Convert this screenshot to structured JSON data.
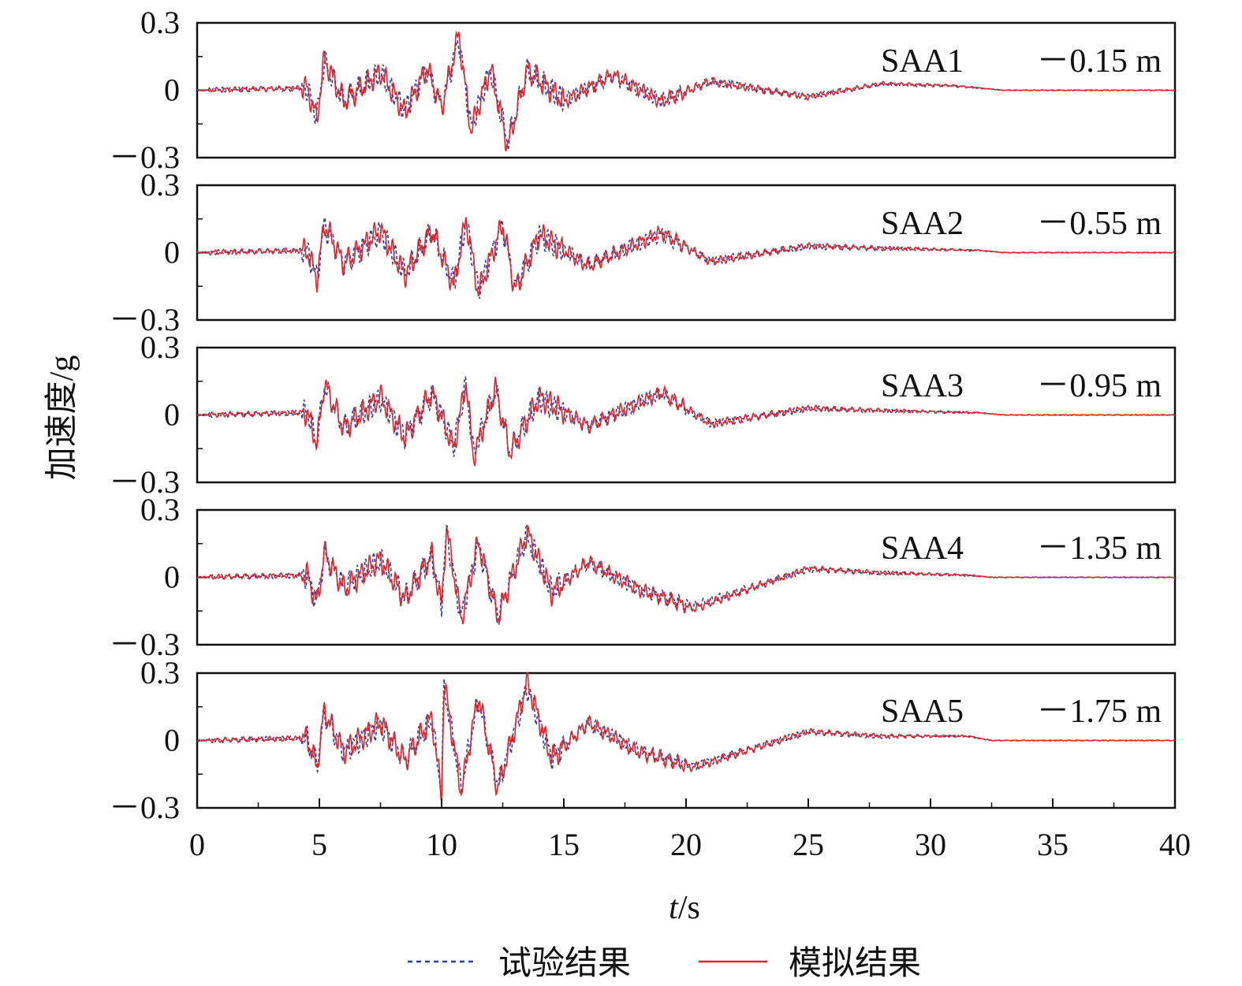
{
  "chart_data": {
    "type": "line",
    "ylabel": "加速度/g",
    "xlabel_var": "t",
    "xlabel_unit": "/s",
    "xlim": [
      0,
      40
    ],
    "ylim": [
      -0.3,
      0.3
    ],
    "x_ticks": [
      "0",
      "5",
      "10",
      "15",
      "20",
      "25",
      "30",
      "35",
      "40"
    ],
    "y_tick_labels": [
      "0.3",
      "0",
      "－0.3"
    ],
    "series_legend": [
      {
        "name": "试验结果",
        "color": "#2e3f9e",
        "style": "dashed"
      },
      {
        "name": "模拟结果",
        "color": "#e0242b",
        "style": "solid"
      }
    ],
    "panels": [
      {
        "label": "SAA1",
        "depth": "－0.15 m",
        "keypoints": [
          [
            0,
            0
          ],
          [
            4.5,
            0.01
          ],
          [
            4.9,
            -0.13
          ],
          [
            5.2,
            0.14
          ],
          [
            6,
            -0.05
          ],
          [
            7.5,
            0.08
          ],
          [
            8.5,
            -0.1
          ],
          [
            9.4,
            0.1
          ],
          [
            10,
            -0.08
          ],
          [
            10.7,
            0.25
          ],
          [
            11.2,
            -0.18
          ],
          [
            12,
            0.1
          ],
          [
            12.7,
            -0.25
          ],
          [
            13.5,
            0.09
          ],
          [
            15,
            -0.05
          ],
          [
            17,
            0.07
          ],
          [
            19,
            -0.05
          ],
          [
            21,
            0.04
          ],
          [
            25,
            -0.03
          ],
          [
            28,
            0.03
          ],
          [
            31,
            0.02
          ],
          [
            33,
            0
          ],
          [
            40,
            0
          ]
        ]
      },
      {
        "label": "SAA2",
        "depth": "－0.55 m",
        "keypoints": [
          [
            0,
            0
          ],
          [
            4.5,
            0.01
          ],
          [
            4.9,
            -0.12
          ],
          [
            5.2,
            0.13
          ],
          [
            6,
            -0.05
          ],
          [
            7.5,
            0.1
          ],
          [
            8.5,
            -0.1
          ],
          [
            9.6,
            0.1
          ],
          [
            10.5,
            -0.15
          ],
          [
            11,
            0.15
          ],
          [
            11.5,
            -0.18
          ],
          [
            12.5,
            0.13
          ],
          [
            13,
            -0.17
          ],
          [
            14,
            0.08
          ],
          [
            16,
            -0.06
          ],
          [
            19,
            0.09
          ],
          [
            21,
            -0.04
          ],
          [
            25,
            0.03
          ],
          [
            28,
            0.02
          ],
          [
            32,
            0.01
          ],
          [
            33,
            0
          ],
          [
            40,
            0
          ]
        ]
      },
      {
        "label": "SAA3",
        "depth": "－0.95 m",
        "keypoints": [
          [
            0,
            0
          ],
          [
            4.5,
            0.01
          ],
          [
            4.9,
            -0.13
          ],
          [
            5.2,
            0.14
          ],
          [
            6,
            -0.06
          ],
          [
            7.5,
            0.08
          ],
          [
            8.5,
            -0.1
          ],
          [
            9.6,
            0.1
          ],
          [
            10.5,
            -0.15
          ],
          [
            11,
            0.15
          ],
          [
            11.3,
            -0.19
          ],
          [
            12.2,
            0.12
          ],
          [
            12.8,
            -0.17
          ],
          [
            14,
            0.08
          ],
          [
            16,
            -0.05
          ],
          [
            19,
            0.1
          ],
          [
            21,
            -0.04
          ],
          [
            25,
            0.03
          ],
          [
            28,
            0.02
          ],
          [
            32,
            0.01
          ],
          [
            33,
            0
          ],
          [
            40,
            0
          ]
        ]
      },
      {
        "label": "SAA4",
        "depth": "－1.35 m",
        "keypoints": [
          [
            0,
            0
          ],
          [
            4.5,
            0.01
          ],
          [
            4.9,
            -0.12
          ],
          [
            5.2,
            0.11
          ],
          [
            6,
            -0.05
          ],
          [
            7.5,
            0.08
          ],
          [
            8.5,
            -0.1
          ],
          [
            9.6,
            0.1
          ],
          [
            10,
            -0.13
          ],
          [
            10.2,
            0.22
          ],
          [
            10.8,
            -0.19
          ],
          [
            11.5,
            0.16
          ],
          [
            12.3,
            -0.18
          ],
          [
            13.5,
            0.2
          ],
          [
            14.5,
            -0.07
          ],
          [
            16,
            0.07
          ],
          [
            18,
            -0.05
          ],
          [
            20.3,
            -0.14
          ],
          [
            25,
            0.04
          ],
          [
            28,
            0.02
          ],
          [
            31.5,
            0.01
          ],
          [
            32.5,
            0
          ],
          [
            40,
            0
          ]
        ]
      },
      {
        "label": "SAA5",
        "depth": "－1.75 m",
        "keypoints": [
          [
            0,
            0
          ],
          [
            4.5,
            0.01
          ],
          [
            4.9,
            -0.12
          ],
          [
            5.2,
            0.13
          ],
          [
            6,
            -0.05
          ],
          [
            7.5,
            0.08
          ],
          [
            8.5,
            -0.09
          ],
          [
            9.6,
            0.1
          ],
          [
            10,
            -0.25
          ],
          [
            10.1,
            0.26
          ],
          [
            10.8,
            -0.23
          ],
          [
            11.5,
            0.2
          ],
          [
            12.3,
            -0.22
          ],
          [
            13.5,
            0.26
          ],
          [
            14.5,
            -0.08
          ],
          [
            16,
            0.08
          ],
          [
            18,
            -0.05
          ],
          [
            20.3,
            -0.12
          ],
          [
            25,
            0.04
          ],
          [
            28,
            0.02
          ],
          [
            31.5,
            0.02
          ],
          [
            32.5,
            0
          ],
          [
            40,
            0
          ]
        ]
      }
    ]
  }
}
